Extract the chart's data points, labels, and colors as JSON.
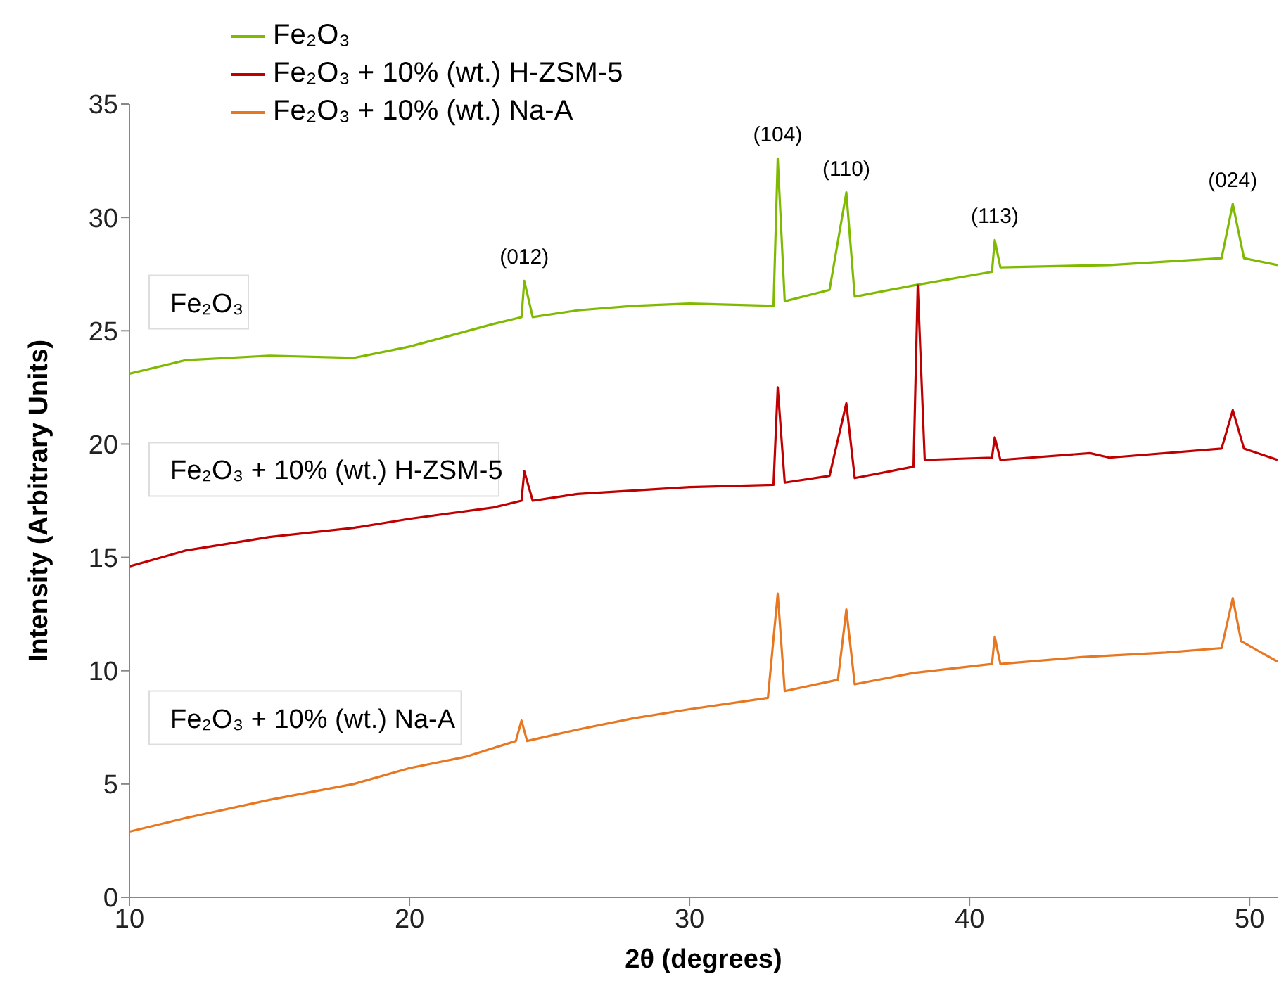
{
  "chart_data": {
    "type": "line",
    "xlabel": "2θ (degrees)",
    "ylabel": "Intensity (Arbitrary Units)",
    "xlim": [
      10,
      51
    ],
    "xticks": [
      10,
      20,
      30,
      40,
      50
    ],
    "ylim": [
      0,
      35
    ],
    "yticks": [
      0,
      5,
      10,
      15,
      20,
      25,
      30,
      35
    ],
    "grid": false,
    "legend": "top",
    "marker": "none",
    "line_style": "solid",
    "annotations": [
      {
        "text": "(012)",
        "x": 24.1,
        "y": 27.2
      },
      {
        "text": "(104)",
        "x": 33.15,
        "y": 32.6
      },
      {
        "text": "(110)",
        "x": 35.6,
        "y": 31.1
      },
      {
        "text": "(113)",
        "x": 40.9,
        "y": 29.0
      },
      {
        "text": "(024)",
        "x": 49.4,
        "y": 30.6
      }
    ],
    "series": [
      {
        "name": "Fe₂O₃",
        "color": "#7fba00",
        "x": [
          10,
          12,
          15,
          18,
          20,
          23,
          24,
          24.1,
          24.4,
          26,
          28,
          30,
          33,
          33.15,
          33.4,
          35,
          35.6,
          35.9,
          38,
          40.8,
          40.9,
          41.1,
          45,
          49,
          49.4,
          49.8,
          51
        ],
        "values": [
          23.1,
          23.7,
          23.9,
          23.8,
          24.3,
          25.3,
          25.6,
          27.2,
          25.6,
          25.9,
          26.1,
          26.2,
          26.1,
          32.6,
          26.3,
          26.8,
          31.1,
          26.5,
          27.0,
          27.6,
          29.0,
          27.8,
          27.9,
          28.2,
          30.6,
          28.2,
          27.9
        ]
      },
      {
        "name": "Fe₂O₃ + 10% (wt.) H-ZSM-5",
        "color": "#c00000",
        "x": [
          10,
          12,
          15,
          18,
          20,
          23,
          24,
          24.1,
          24.4,
          26,
          30,
          33,
          33.15,
          33.4,
          35,
          35.6,
          35.9,
          38,
          38.15,
          38.4,
          40.8,
          40.9,
          41.1,
          44.3,
          45,
          49,
          49.4,
          49.8,
          51
        ],
        "values": [
          14.6,
          15.3,
          15.9,
          16.3,
          16.7,
          17.2,
          17.5,
          18.8,
          17.5,
          17.8,
          18.1,
          18.2,
          22.5,
          18.3,
          18.6,
          21.8,
          18.5,
          19.0,
          27.0,
          19.3,
          19.4,
          20.3,
          19.3,
          19.6,
          19.4,
          19.8,
          21.5,
          19.8,
          19.3
        ]
      },
      {
        "name": "Fe₂O₃ + 10% (wt.) Na-A",
        "color": "#e87722",
        "x": [
          10,
          12,
          15,
          18,
          20,
          22,
          23.8,
          24.0,
          24.2,
          26,
          28,
          30,
          32.8,
          33.15,
          33.4,
          35.3,
          35.6,
          35.9,
          38,
          40.8,
          40.9,
          41.1,
          44,
          47,
          49,
          49.4,
          49.7,
          51
        ],
        "values": [
          2.9,
          3.5,
          4.3,
          5.0,
          5.7,
          6.2,
          6.9,
          7.8,
          6.9,
          7.4,
          7.9,
          8.3,
          8.8,
          13.4,
          9.1,
          9.6,
          12.7,
          9.4,
          9.9,
          10.3,
          11.5,
          10.3,
          10.6,
          10.8,
          11.0,
          13.2,
          11.3,
          10.4
        ]
      }
    ]
  }
}
